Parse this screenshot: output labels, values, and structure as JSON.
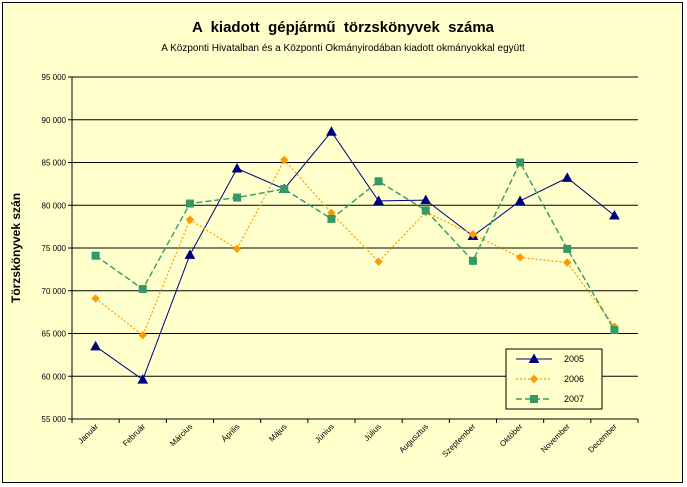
{
  "chart_data": {
    "type": "line",
    "title": "A  kiadott  gépjármű  törzskönyvek  száma",
    "subtitle": "A Központi Hivatalban és a Központi Okmányirodában kiadott okmányokkal együtt",
    "ylabel": "Törzskönyvek szán",
    "xlabel": "",
    "ylim": [
      55000,
      95000
    ],
    "yticks": [
      55000,
      60000,
      65000,
      70000,
      75000,
      80000,
      85000,
      90000,
      95000
    ],
    "ytick_labels": [
      "55 000",
      "60 000",
      "65 000",
      "70 000",
      "75 000",
      "80 000",
      "85 000",
      "90 000",
      "95 000"
    ],
    "grid": true,
    "legend_position": "bottom-right",
    "categories": [
      "Január",
      "Február",
      "Március",
      "Április",
      "Május",
      "Június",
      "Július",
      "Augusztus",
      "Szeptember",
      "Október",
      "November",
      "December"
    ],
    "series": [
      {
        "name": "2005",
        "color": "#00007F",
        "marker": "triangle",
        "dash": "solid",
        "values": [
          63500,
          59600,
          74200,
          84300,
          81900,
          88600,
          80500,
          80600,
          76400,
          80500,
          83200,
          78800
        ]
      },
      {
        "name": "2006",
        "color": "#FF9900",
        "marker": "diamond",
        "dash": "dotted",
        "values": [
          69100,
          64800,
          78300,
          74900,
          85300,
          79100,
          73400,
          79200,
          76600,
          73900,
          73300,
          65800
        ]
      },
      {
        "name": "2007",
        "color": "#339966",
        "marker": "square",
        "dash": "dashed",
        "values": [
          74100,
          70200,
          80200,
          80900,
          81900,
          78400,
          82800,
          79400,
          73500,
          85000,
          74900,
          65400
        ]
      }
    ]
  }
}
